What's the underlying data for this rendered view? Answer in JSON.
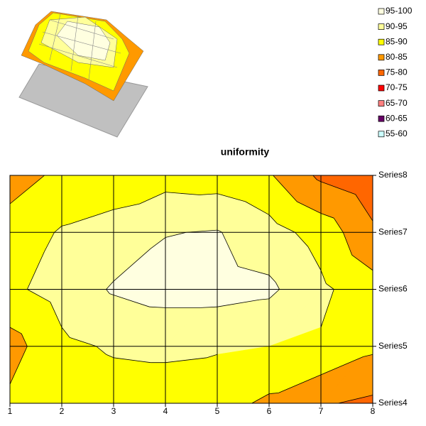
{
  "chart_data": {
    "type": "contour",
    "title": "uniformity",
    "x": [
      1,
      2,
      3,
      4,
      5,
      6,
      7,
      8
    ],
    "xlim": [
      1,
      8
    ],
    "xticks": [
      1,
      2,
      3,
      4,
      5,
      6,
      7,
      8
    ],
    "series": [
      {
        "name": "Series4",
        "values": [
          86,
          87,
          88,
          88,
          87,
          84,
          80.5,
          79
        ]
      },
      {
        "name": "Series5",
        "values": [
          83,
          89,
          90.5,
          90.8,
          90.5,
          90,
          89.5,
          86
        ]
      },
      {
        "name": "Series6",
        "values": [
          89,
          92,
          95.5,
          97,
          97,
          96,
          91,
          87
        ]
      },
      {
        "name": "Series7",
        "values": [
          87,
          90.5,
          92,
          94.8,
          95.3,
          92,
          88,
          81
        ]
      },
      {
        "name": "Series8",
        "values": [
          83,
          86,
          87,
          88,
          87.5,
          85.5,
          79,
          76
        ]
      }
    ],
    "bands": [
      {
        "label": "95-100",
        "min": 95,
        "max": 100,
        "color": "#ffffe0"
      },
      {
        "label": "90-95",
        "min": 90,
        "max": 95,
        "color": "#ffff99"
      },
      {
        "label": "85-90",
        "min": 85,
        "max": 90,
        "color": "#ffff00"
      },
      {
        "label": "80-85",
        "min": 80,
        "max": 85,
        "color": "#ff9900"
      },
      {
        "label": "75-80",
        "min": 75,
        "max": 80,
        "color": "#ff6600"
      },
      {
        "label": "70-75",
        "min": 70,
        "max": 75,
        "color": "#ff0000"
      },
      {
        "label": "65-70",
        "min": 65,
        "max": 70,
        "color": "#ff8080"
      },
      {
        "label": "60-65",
        "min": 60,
        "max": 65,
        "color": "#660066"
      },
      {
        "label": "55-60",
        "min": 55,
        "max": 60,
        "color": "#ccffff"
      }
    ],
    "grid": true
  }
}
